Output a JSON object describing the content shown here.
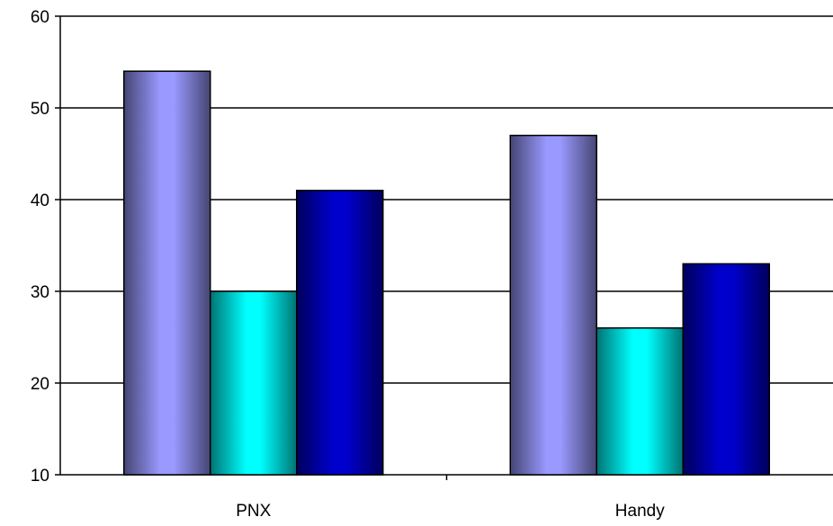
{
  "chart_data": {
    "type": "bar",
    "categories": [
      "PNX",
      "Handy"
    ],
    "series": [
      {
        "values": [
          54,
          47
        ],
        "color": "#9999ff"
      },
      {
        "values": [
          30,
          26
        ],
        "color": "#00ffff"
      },
      {
        "values": [
          41,
          33
        ],
        "color": "#0000cc"
      }
    ],
    "ylim": [
      10,
      60
    ],
    "y_ticks": [
      "10",
      "20",
      "30",
      "40",
      "50",
      "60"
    ],
    "grid": true,
    "legend": "none",
    "bar_style": "cylindrical gradient"
  }
}
